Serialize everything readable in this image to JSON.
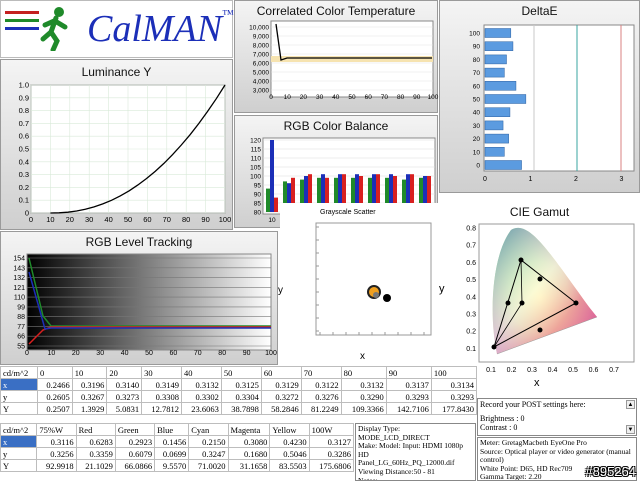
{
  "logo": {
    "text": "CalMAN",
    "tm": "™"
  },
  "cct": {
    "title": "Correlated Color Temperature",
    "y_ticks": [
      "10,000",
      "9,000",
      "8,000",
      "7,000",
      "6,000",
      "5,000",
      "4,000",
      "3,000"
    ],
    "x_ticks": [
      "0",
      "10",
      "20",
      "30",
      "40",
      "50",
      "60",
      "70",
      "80",
      "90",
      "100"
    ]
  },
  "luminance": {
    "title": "Luminance Y",
    "y_ticks": [
      "1.0",
      "0.9",
      "0.8",
      "0.7",
      "0.6",
      "0.5",
      "0.4",
      "0.3",
      "0.2",
      "0.1",
      "0"
    ],
    "x_ticks": [
      "0",
      "10",
      "20",
      "30",
      "40",
      "50",
      "60",
      "70",
      "80",
      "90",
      "100"
    ]
  },
  "rgb_balance": {
    "title": "RGB Color Balance",
    "y_ticks": [
      "120",
      "115",
      "110",
      "105",
      "100",
      "95",
      "90",
      "85",
      "80"
    ],
    "x_ticks": [
      "10",
      "20",
      "30",
      "40",
      "50",
      "60",
      "70",
      "80",
      "90",
      "Avg"
    ]
  },
  "deltae": {
    "title": "DeltaE",
    "y_ticks": [
      "100",
      "90",
      "80",
      "70",
      "60",
      "50",
      "40",
      "30",
      "20",
      "10",
      "0"
    ],
    "x_ticks": [
      "0",
      "1",
      "2",
      "3"
    ]
  },
  "rgb_tracking": {
    "title": "RGB Level Tracking",
    "y_ticks": [
      "154",
      "143",
      "132",
      "121",
      "110",
      "99",
      "88",
      "77",
      "66",
      "55"
    ],
    "x_ticks": [
      "0",
      "10",
      "20",
      "30",
      "40",
      "50",
      "60",
      "70",
      "80",
      "90",
      "100"
    ]
  },
  "scatter": {
    "title": "Grayscale Scatter",
    "xlabel": "x",
    "ylabel": "y"
  },
  "cie": {
    "title": "CIE Gamut",
    "xlabel": "x",
    "ylabel": "y",
    "y_ticks": [
      "0.8",
      "0.7",
      "0.6",
      "0.5",
      "0.4",
      "0.3",
      "0.2",
      "0.1"
    ],
    "x_ticks": [
      "0.1",
      "0.2",
      "0.3",
      "0.4",
      "0.5",
      "0.6",
      "0.7"
    ]
  },
  "table1": {
    "header": [
      "cd/m^2",
      "0",
      "10",
      "20",
      "30",
      "40",
      "50",
      "60",
      "70",
      "80",
      "90",
      "100"
    ],
    "rows": [
      [
        "x",
        "0.2466",
        "0.3196",
        "0.3140",
        "0.3149",
        "0.3132",
        "0.3125",
        "0.3129",
        "0.3122",
        "0.3132",
        "0.3137",
        "0.3134"
      ],
      [
        "y",
        "0.2605",
        "0.3267",
        "0.3273",
        "0.3308",
        "0.3302",
        "0.3304",
        "0.3272",
        "0.3276",
        "0.3290",
        "0.3293",
        "0.3293"
      ],
      [
        "Y",
        "0.2507",
        "1.3929",
        "5.0831",
        "12.7812",
        "23.6063",
        "38.7898",
        "58.2846",
        "81.2249",
        "109.3366",
        "142.7106",
        "177.8430"
      ]
    ]
  },
  "table2": {
    "header": [
      "cd/m^2",
      "75%W",
      "Red",
      "Green",
      "Blue",
      "Cyan",
      "Magenta",
      "Yellow",
      "100W"
    ],
    "rows": [
      [
        "x",
        "0.3116",
        "0.6283",
        "0.2923",
        "0.1456",
        "0.2150",
        "0.3080",
        "0.4230",
        "0.3127"
      ],
      [
        "y",
        "0.3256",
        "0.3359",
        "0.6079",
        "0.0699",
        "0.3247",
        "0.1680",
        "0.5046",
        "0.3286"
      ],
      [
        "Y",
        "92.9918",
        "21.1029",
        "66.0866",
        "9.5570",
        "71.0020",
        "31.1658",
        "83.5503",
        "175.6806"
      ]
    ]
  },
  "display_info": [
    "Display Type: MODE_LCD_DIRECT",
    "Make: Model: Input: HDMI 1080p HD",
    "Panel_LG_60Hz_PQ_12000.dif",
    "Viewing Distance:50 - 81",
    "Notes:"
  ],
  "post": {
    "text": "Record your POST settings here:",
    "brightness": "Brightness : 0",
    "contrast": "Contrast     : 0"
  },
  "meter_info": [
    "Meter: GretagMacbeth EyeOne Pro",
    "Source: Optical player or video generator (manual control)",
    "White Point: D65, HD Rec709",
    "Gamma Target: 2.20"
  ],
  "watermark": "#895264",
  "colors": {
    "red": "#d82020",
    "green": "#1f8a2a",
    "blue": "#1c2fb8",
    "bar": "#5b9be0"
  }
}
